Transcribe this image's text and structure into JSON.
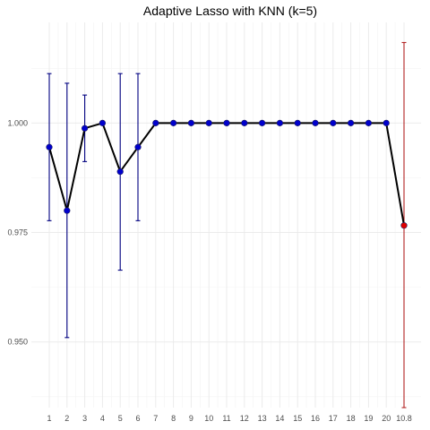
{
  "chart_data": {
    "type": "line",
    "title": "Adaptive Lasso with KNN (k=5)",
    "xlabel": "",
    "ylabel": "",
    "categories": [
      "1",
      "2",
      "3",
      "4",
      "5",
      "6",
      "7",
      "8",
      "9",
      "10",
      "11",
      "12",
      "13",
      "14",
      "15",
      "16",
      "17",
      "18",
      "19",
      "20",
      "10.8"
    ],
    "y_ticks": [
      0.95,
      0.975,
      1.0
    ],
    "y_tick_labels": [
      "0.950",
      "0.975",
      "1.000"
    ],
    "ylim": [
      0.935,
      1.023
    ],
    "grid": true,
    "legend": "none",
    "points": [
      {
        "x": "1",
        "y": 0.9945,
        "lower": 0.9777,
        "upper": 1.0113
      },
      {
        "x": "2",
        "y": 0.98,
        "lower": 0.951,
        "upper": 1.0091
      },
      {
        "x": "3",
        "y": 0.9988,
        "lower": 0.9912,
        "upper": 1.0064
      },
      {
        "x": "4",
        "y": 1.0
      },
      {
        "x": "5",
        "y": 0.9889,
        "lower": 0.9664,
        "upper": 1.0113
      },
      {
        "x": "6",
        "y": 0.9945,
        "lower": 0.9777,
        "upper": 1.0113
      },
      {
        "x": "7",
        "y": 1.0
      },
      {
        "x": "8",
        "y": 1.0
      },
      {
        "x": "9",
        "y": 1.0
      },
      {
        "x": "10",
        "y": 1.0
      },
      {
        "x": "11",
        "y": 1.0
      },
      {
        "x": "12",
        "y": 1.0
      },
      {
        "x": "13",
        "y": 1.0
      },
      {
        "x": "14",
        "y": 1.0
      },
      {
        "x": "15",
        "y": 1.0
      },
      {
        "x": "16",
        "y": 1.0
      },
      {
        "x": "17",
        "y": 1.0
      },
      {
        "x": "18",
        "y": 1.0
      },
      {
        "x": "19",
        "y": 1.0
      },
      {
        "x": "20",
        "y": 1.0
      },
      {
        "x": "10.8",
        "y": 0.9766,
        "lower": 0.935,
        "upper": 1.0184,
        "highlight": true
      }
    ],
    "colors": {
      "point": "#0000cd",
      "highlight": "#e00000",
      "errorbar": "#000080",
      "highlight_errorbar": "#b22222",
      "line": "#000000"
    }
  }
}
